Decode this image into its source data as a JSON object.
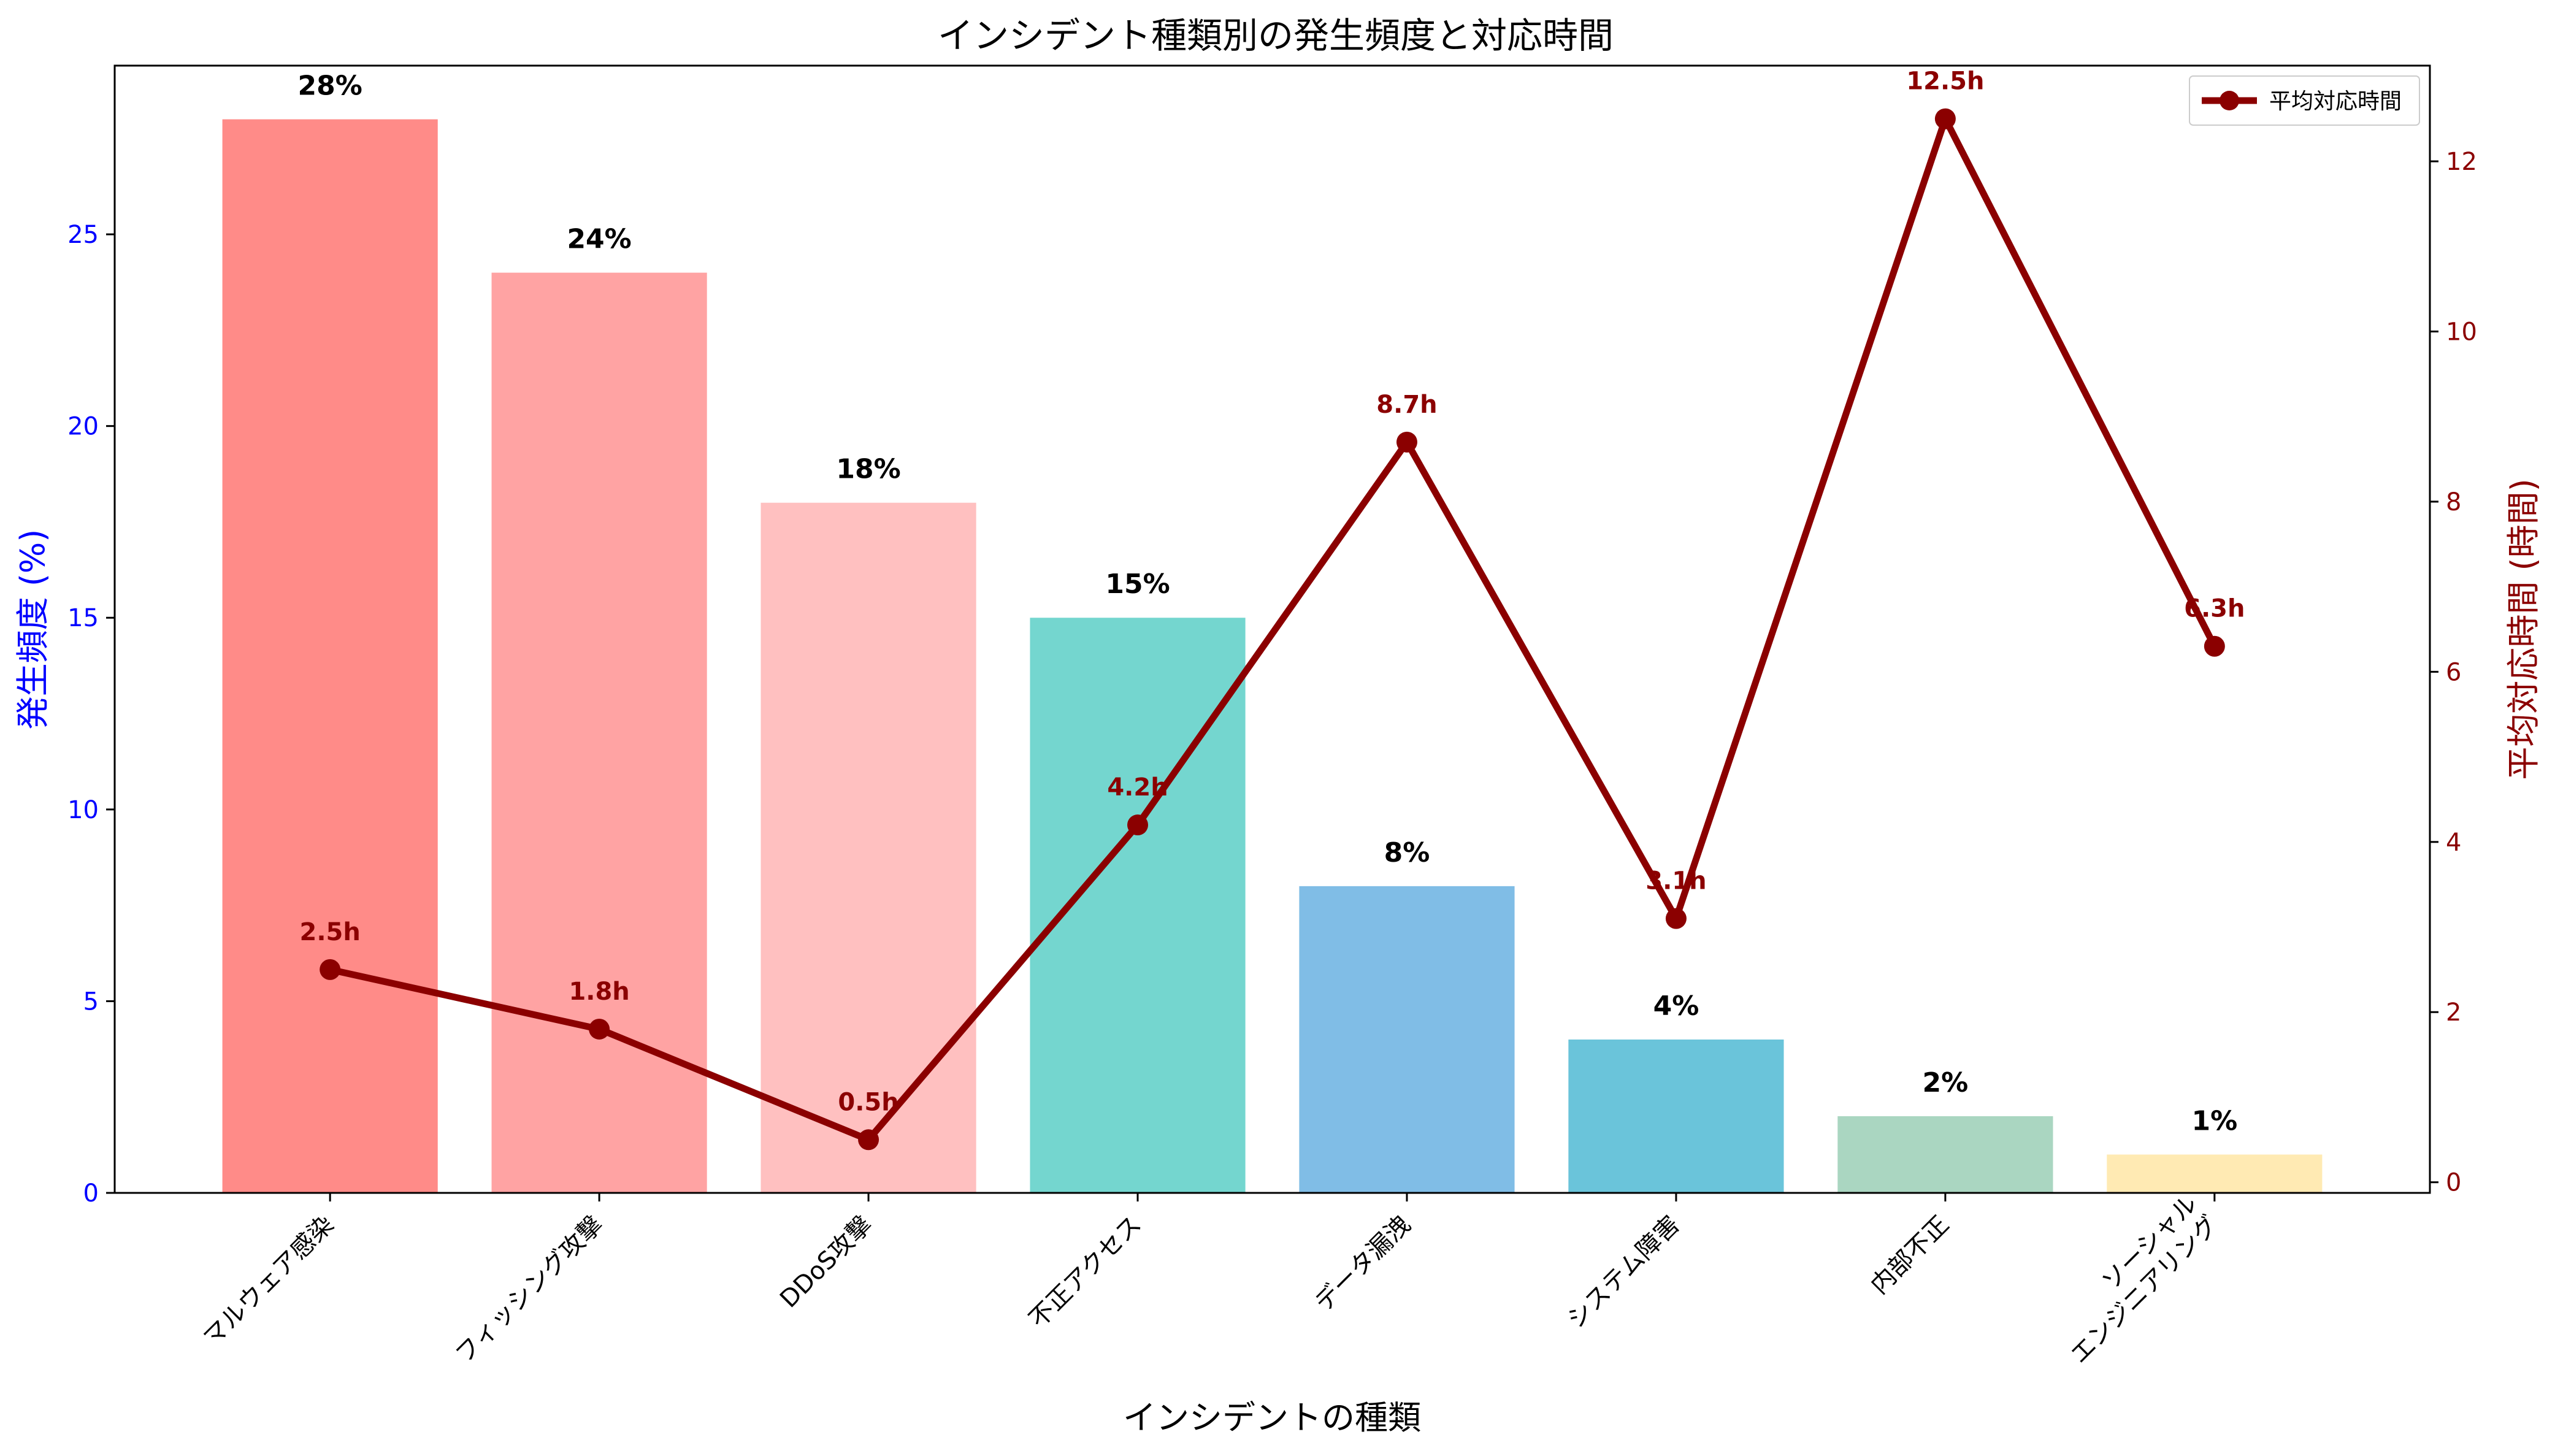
{
  "chart_data": {
    "type": "bar",
    "title": "インシデント種類別の発生頻度と対応時間",
    "xlabel": "インシデントの種類",
    "ylabel": "発生頻度 (%)",
    "y2label": "平均対応時間 (時間)",
    "categories": [
      [
        "マルウェア感染"
      ],
      [
        "フィッシング攻撃"
      ],
      [
        "DDoS攻撃"
      ],
      [
        "不正アクセス"
      ],
      [
        "データ漏洩"
      ],
      [
        "システム障害"
      ],
      [
        "内部不正"
      ],
      [
        "ソーシャル",
        "エンジニアリング"
      ]
    ],
    "ylim": [
      0,
      29.4
    ],
    "y2lim": [
      -0.125,
      13.125
    ],
    "yticks": [
      0,
      5,
      10,
      15,
      20,
      25
    ],
    "y2ticks": [
      0,
      2,
      4,
      6,
      8,
      10,
      12
    ],
    "legend_position": "top-right",
    "grid": false,
    "colors": {
      "left_axis": "#0000ff",
      "right_axis": "#8b0000",
      "line": "#8b0000"
    },
    "series": [
      {
        "type": "bar",
        "values": [
          28,
          24,
          18,
          15,
          8,
          4,
          2,
          1
        ],
        "labels": [
          "28%",
          "24%",
          "18%",
          "15%",
          "8%",
          "4%",
          "2%",
          "1%"
        ],
        "colors": [
          "#ff8b88",
          "#ffa3a3",
          "#ffc0c0",
          "#74d6cf",
          "#80bde6",
          "#6ac4da",
          "#aad6c1",
          "#ffeab3"
        ]
      },
      {
        "type": "line",
        "name": "平均対応時間",
        "axis": "right",
        "values": [
          2.5,
          1.8,
          0.5,
          4.2,
          8.7,
          3.1,
          12.5,
          6.3
        ],
        "labels": [
          "2.5h",
          "1.8h",
          "0.5h",
          "4.2h",
          "8.7h",
          "3.1h",
          "12.5h",
          "6.3h"
        ]
      }
    ]
  }
}
